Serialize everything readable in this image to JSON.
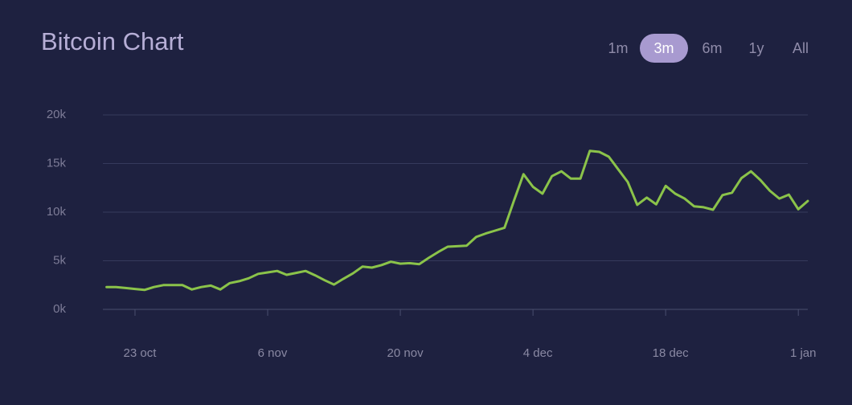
{
  "chart_data": {
    "type": "line",
    "title": "Bitcoin Chart",
    "range_buttons": {
      "options": [
        "1m",
        "3m",
        "6m",
        "1y",
        "All"
      ],
      "selected": "3m"
    },
    "categories": [
      null,
      null,
      null,
      "23 oct",
      null,
      null,
      null,
      null,
      null,
      null,
      null,
      null,
      null,
      null,
      null,
      null,
      null,
      "6 nov",
      null,
      null,
      null,
      null,
      null,
      null,
      null,
      null,
      null,
      null,
      null,
      null,
      null,
      "20 nov",
      null,
      null,
      null,
      null,
      null,
      null,
      null,
      null,
      null,
      null,
      null,
      null,
      null,
      "4 dec",
      null,
      null,
      null,
      null,
      null,
      null,
      null,
      null,
      null,
      null,
      null,
      null,
      null,
      "18 dec",
      null,
      null,
      null,
      null,
      null,
      null,
      null,
      null,
      null,
      null,
      null,
      null,
      null,
      "1 jan",
      null
    ],
    "series": [
      {
        "name": "Bitcoin",
        "color": "#8bc34a",
        "values": [
          2300,
          2300,
          2200,
          2100,
          2000,
          2300,
          2500,
          2500,
          2500,
          2050,
          2300,
          2450,
          2050,
          2700,
          2900,
          3200,
          3650,
          3800,
          3950,
          3550,
          3750,
          3950,
          3500,
          3000,
          2550,
          3150,
          3700,
          4400,
          4300,
          4550,
          4900,
          4700,
          4750,
          4650,
          5300,
          5900,
          6450,
          6500,
          6550,
          7450,
          7800,
          8100,
          8400,
          11200,
          13900,
          12600,
          11900,
          13700,
          14200,
          13450,
          13450,
          16300,
          16200,
          15700,
          14400,
          13100,
          10750,
          11500,
          10800,
          12700,
          11900,
          11400,
          10600,
          10500,
          10250,
          11750,
          12000,
          13500,
          14200,
          13300,
          12200,
          11400,
          11800,
          10300,
          11150
        ]
      }
    ],
    "ylim": [
      0,
      20000
    ],
    "yticks": [
      {
        "value": 0,
        "label": "0k"
      },
      {
        "value": 5000,
        "label": "5k"
      },
      {
        "value": 10000,
        "label": "10k"
      },
      {
        "value": 15000,
        "label": "15k"
      },
      {
        "value": 20000,
        "label": "20k"
      }
    ],
    "grid": true
  }
}
